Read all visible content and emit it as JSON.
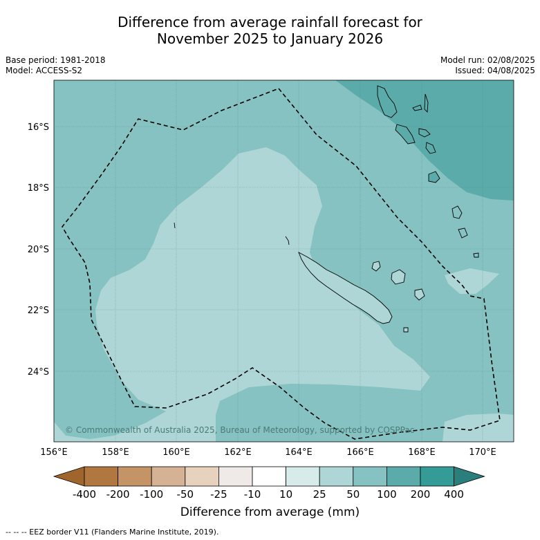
{
  "header": {
    "title_line1": "Difference from average rainfall forecast for",
    "title_line2": "November 2025 to January 2026",
    "base_period": "Base period: 1981-2018",
    "model": "Model: ACCESS-S2",
    "model_run": "Model run: 02/08/2025",
    "issued": "Issued: 04/08/2025"
  },
  "map": {
    "lat_labels": [
      "16°S",
      "18°S",
      "20°S",
      "22°S",
      "24°S"
    ],
    "lon_labels": [
      "156°E",
      "158°E",
      "160°E",
      "162°E",
      "164°E",
      "166°E",
      "168°E",
      "170°E"
    ],
    "copyright": "© Commonwealth of Australia 2025, Bureau of Meteorology, supported by COSPPac",
    "colors": {
      "class_50_100": "#86c2c1",
      "class_25_50": "#aed6d6",
      "class_100_200": "#5babab"
    }
  },
  "colorbar": {
    "labels": [
      "-400",
      "-200",
      "-100",
      "-50",
      "-25",
      "-10",
      "10",
      "25",
      "50",
      "100",
      "200",
      "400"
    ],
    "colors": [
      "#a0642d",
      "#b07840",
      "#c49466",
      "#d5b294",
      "#e7d2be",
      "#efeae7",
      "#ffffff",
      "#d6ebea",
      "#aed6d6",
      "#86c2c1",
      "#5babab",
      "#359b97",
      "#2a7f7c"
    ],
    "title": "Difference from average (mm)"
  },
  "footer": {
    "legend_text": "--  --  -- EEZ border V11 (Flanders Marine Institute, 2019)."
  }
}
